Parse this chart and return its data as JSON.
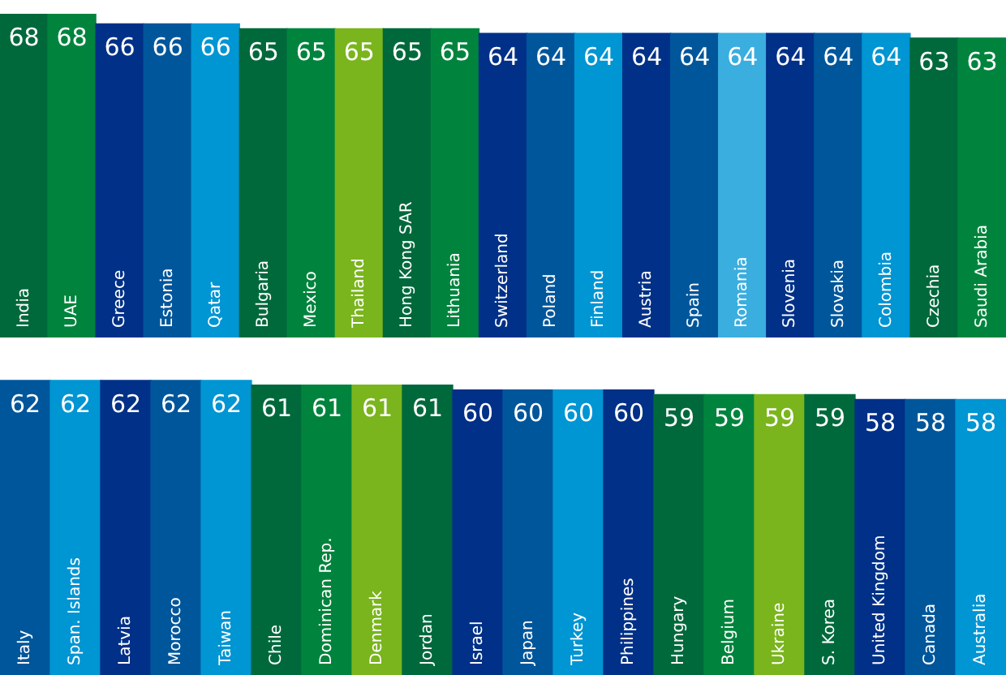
{
  "chart_data": [
    {
      "type": "bar",
      "data_labels": true,
      "categories": [
        "India",
        "UAE",
        "Greece",
        "Estonia",
        "Qatar",
        "Bulgaria",
        "Mexico",
        "Thailand",
        "Hong Kong SAR",
        "Lithuania",
        "Switzerland",
        "Poland",
        "Finland",
        "Austria",
        "Spain",
        "Romania",
        "Slovenia",
        "Slovakia",
        "Colombia",
        "Czechia",
        "Saudi Arabia"
      ],
      "values": [
        68,
        68,
        66,
        66,
        66,
        65,
        65,
        65,
        65,
        65,
        64,
        64,
        64,
        64,
        64,
        64,
        64,
        64,
        64,
        63,
        63
      ],
      "colors": [
        "#00693c",
        "#00843d",
        "#003087",
        "#00569b",
        "#0095d3",
        "#00693c",
        "#00843d",
        "#7ab51d",
        "#00693c",
        "#00843d",
        "#003087",
        "#00569b",
        "#0095d3",
        "#003087",
        "#00569b",
        "#3aaedf",
        "#003087",
        "#00569b",
        "#0095d3",
        "#00693c",
        "#00843d"
      ]
    },
    {
      "type": "bar",
      "data_labels": true,
      "categories": [
        "Italy",
        "Span. Islands",
        "Latvia",
        "Morocco",
        "Taiwan",
        "Chile",
        "Dominican Rep.",
        "Denmark",
        "Jordan",
        "Israel",
        "Japan",
        "Turkey",
        "Philippines",
        "Hungary",
        "Belgium",
        "Ukraine",
        "S. Korea",
        "United Kingdom",
        "Canada",
        "Australia"
      ],
      "values": [
        62,
        62,
        62,
        62,
        62,
        61,
        61,
        61,
        61,
        60,
        60,
        60,
        60,
        59,
        59,
        59,
        59,
        58,
        58,
        58
      ],
      "colors": [
        "#00569b",
        "#0095d3",
        "#003087",
        "#00569b",
        "#0095d3",
        "#00693c",
        "#00843d",
        "#7ab51d",
        "#00693c",
        "#003087",
        "#00569b",
        "#0095d3",
        "#003087",
        "#00693c",
        "#00843d",
        "#7ab51d",
        "#00693c",
        "#003087",
        "#00569b",
        "#0095d3"
      ]
    }
  ]
}
